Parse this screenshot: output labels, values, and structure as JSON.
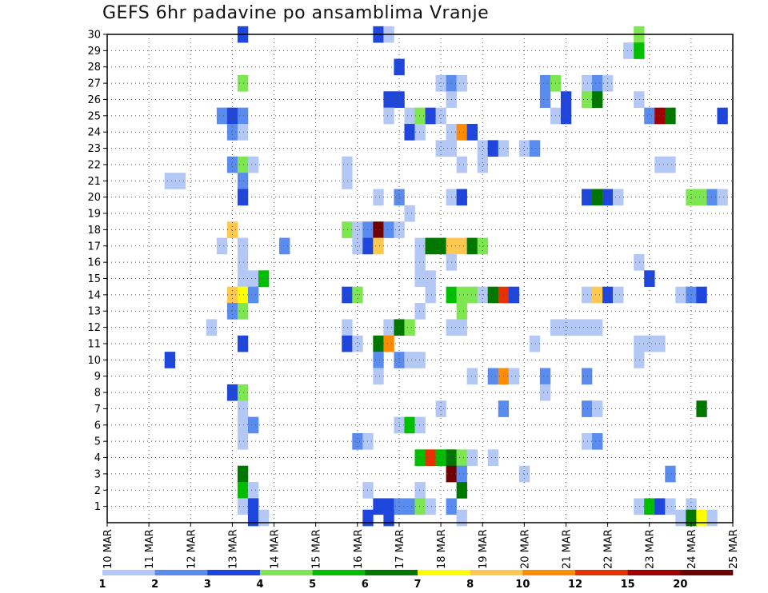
{
  "chart_data": {
    "type": "heatmap",
    "title": "GEFS 6hr padavine po ansamblima Vranje",
    "xlabel": "",
    "ylabel": "",
    "x_tick_labels": [
      "10 MAR",
      "11 MAR",
      "12 MAR",
      "13 MAR",
      "14 MAR",
      "15 MAR",
      "16 MAR",
      "17 MAR",
      "18 MAR",
      "19 MAR",
      "20 MAR",
      "21 MAR",
      "22 MAR",
      "23 MAR",
      "24 MAR",
      "25 MAR"
    ],
    "x_range_days": [
      10,
      25
    ],
    "y_tick_labels": [
      "1",
      "2",
      "3",
      "4",
      "5",
      "6",
      "7",
      "8",
      "9",
      "10",
      "11",
      "12",
      "13",
      "14",
      "15",
      "16",
      "17",
      "18",
      "19",
      "20",
      "21",
      "22",
      "23",
      "24",
      "25",
      "26",
      "27",
      "28",
      "29",
      "30"
    ],
    "y_range": [
      0,
      30
    ],
    "grid": true,
    "colorbar": {
      "labels": [
        "1",
        "2",
        "3",
        "4",
        "5",
        "6",
        "7",
        "8",
        "10",
        "12",
        "15",
        "20"
      ],
      "colors": [
        "#b4c8f5",
        "#5a8cf0",
        "#1e46dc",
        "#7de650",
        "#00be00",
        "#007800",
        "#ffff00",
        "#ffc850",
        "#ff8c00",
        "#e63200",
        "#a00000",
        "#6e0000"
      ]
    },
    "cell_days": 0.25,
    "cells": [
      {
        "m": 30,
        "t": 13.25,
        "c": 3
      },
      {
        "m": 30,
        "t": 16.5,
        "c": 3
      },
      {
        "m": 30,
        "t": 16.75,
        "c": 1
      },
      {
        "m": 30,
        "t": 22.75,
        "c": 4
      },
      {
        "m": 29,
        "t": 22.5,
        "c": 1
      },
      {
        "m": 29,
        "t": 22.75,
        "c": 5
      },
      {
        "m": 28,
        "t": 17,
        "c": 3
      },
      {
        "m": 27,
        "t": 13.25,
        "c": 4
      },
      {
        "m": 27,
        "t": 18,
        "c": 1
      },
      {
        "m": 27,
        "t": 18.25,
        "c": 2
      },
      {
        "m": 27,
        "t": 18.5,
        "c": 1
      },
      {
        "m": 27,
        "t": 20.5,
        "c": 2
      },
      {
        "m": 27,
        "t": 20.75,
        "c": 4
      },
      {
        "m": 27,
        "t": 21.5,
        "c": 1
      },
      {
        "m": 27,
        "t": 21.75,
        "c": 2
      },
      {
        "m": 27,
        "t": 22,
        "c": 1
      },
      {
        "m": 26,
        "t": 16.75,
        "c": 3
      },
      {
        "m": 26,
        "t": 17,
        "c": 3
      },
      {
        "m": 26,
        "t": 18.25,
        "c": 1
      },
      {
        "m": 26,
        "t": 20.5,
        "c": 2
      },
      {
        "m": 26,
        "t": 21,
        "c": 3
      },
      {
        "m": 26,
        "t": 21.5,
        "c": 4
      },
      {
        "m": 26,
        "t": 21.75,
        "c": 6
      },
      {
        "m": 26,
        "t": 22.75,
        "c": 1
      },
      {
        "m": 25,
        "t": 12.75,
        "c": 2
      },
      {
        "m": 25,
        "t": 13,
        "c": 3
      },
      {
        "m": 25,
        "t": 13.25,
        "c": 2
      },
      {
        "m": 25,
        "t": 16.75,
        "c": 1
      },
      {
        "m": 25,
        "t": 17.25,
        "c": 1
      },
      {
        "m": 25,
        "t": 17.5,
        "c": 4
      },
      {
        "m": 25,
        "t": 17.75,
        "c": 3
      },
      {
        "m": 25,
        "t": 18,
        "c": 1
      },
      {
        "m": 25,
        "t": 20.75,
        "c": 1
      },
      {
        "m": 25,
        "t": 21,
        "c": 3
      },
      {
        "m": 25,
        "t": 23,
        "c": 2
      },
      {
        "m": 25,
        "t": 23.25,
        "c": 11
      },
      {
        "m": 25,
        "t": 23.5,
        "c": 6
      },
      {
        "m": 25,
        "t": 24.75,
        "c": 3
      },
      {
        "m": 24,
        "t": 13,
        "c": 2
      },
      {
        "m": 24,
        "t": 13.25,
        "c": 1
      },
      {
        "m": 24,
        "t": 17.25,
        "c": 3
      },
      {
        "m": 24,
        "t": 17.5,
        "c": 1
      },
      {
        "m": 24,
        "t": 18.25,
        "c": 1
      },
      {
        "m": 24,
        "t": 18.5,
        "c": 9
      },
      {
        "m": 24,
        "t": 18.75,
        "c": 3
      },
      {
        "m": 23,
        "t": 18,
        "c": 1
      },
      {
        "m": 23,
        "t": 18.25,
        "c": 1
      },
      {
        "m": 23,
        "t": 19,
        "c": 1
      },
      {
        "m": 23,
        "t": 19.25,
        "c": 3
      },
      {
        "m": 23,
        "t": 19.5,
        "c": 1
      },
      {
        "m": 23,
        "t": 20,
        "c": 1
      },
      {
        "m": 23,
        "t": 20.25,
        "c": 2
      },
      {
        "m": 22,
        "t": 13,
        "c": 2
      },
      {
        "m": 22,
        "t": 13.25,
        "c": 4
      },
      {
        "m": 22,
        "t": 13.5,
        "c": 1
      },
      {
        "m": 22,
        "t": 15.75,
        "c": 1
      },
      {
        "m": 22,
        "t": 18.5,
        "c": 1
      },
      {
        "m": 22,
        "t": 19,
        "c": 1
      },
      {
        "m": 22,
        "t": 23.25,
        "c": 1
      },
      {
        "m": 22,
        "t": 23.5,
        "c": 1
      },
      {
        "m": 21,
        "t": 11.5,
        "c": 1
      },
      {
        "m": 21,
        "t": 11.75,
        "c": 1
      },
      {
        "m": 21,
        "t": 13.25,
        "c": 2
      },
      {
        "m": 21,
        "t": 15.75,
        "c": 1
      },
      {
        "m": 20,
        "t": 13.25,
        "c": 3
      },
      {
        "m": 20,
        "t": 16.5,
        "c": 1
      },
      {
        "m": 20,
        "t": 17,
        "c": 2
      },
      {
        "m": 20,
        "t": 18.25,
        "c": 1
      },
      {
        "m": 20,
        "t": 18.5,
        "c": 3
      },
      {
        "m": 20,
        "t": 21.5,
        "c": 3
      },
      {
        "m": 20,
        "t": 21.75,
        "c": 6
      },
      {
        "m": 20,
        "t": 22,
        "c": 3
      },
      {
        "m": 20,
        "t": 22.25,
        "c": 1
      },
      {
        "m": 20,
        "t": 24,
        "c": 4
      },
      {
        "m": 20,
        "t": 24.25,
        "c": 4
      },
      {
        "m": 20,
        "t": 24.5,
        "c": 2
      },
      {
        "m": 20,
        "t": 24.75,
        "c": 1
      },
      {
        "m": 19,
        "t": 17.25,
        "c": 1
      },
      {
        "m": 18,
        "t": 13,
        "c": 8
      },
      {
        "m": 18,
        "t": 15.75,
        "c": 4
      },
      {
        "m": 18,
        "t": 16,
        "c": 1
      },
      {
        "m": 18,
        "t": 16.25,
        "c": 2
      },
      {
        "m": 18,
        "t": 16.5,
        "c": 12
      },
      {
        "m": 18,
        "t": 16.75,
        "c": 2
      },
      {
        "m": 18,
        "t": 17,
        "c": 1
      },
      {
        "m": 17,
        "t": 12.75,
        "c": 1
      },
      {
        "m": 17,
        "t": 13.25,
        "c": 1
      },
      {
        "m": 17,
        "t": 14.25,
        "c": 2
      },
      {
        "m": 17,
        "t": 16,
        "c": 1
      },
      {
        "m": 17,
        "t": 16.25,
        "c": 3
      },
      {
        "m": 17,
        "t": 16.5,
        "c": 8
      },
      {
        "m": 17,
        "t": 17.5,
        "c": 1
      },
      {
        "m": 17,
        "t": 17.75,
        "c": 6
      },
      {
        "m": 17,
        "t": 18,
        "c": 6
      },
      {
        "m": 17,
        "t": 18.25,
        "c": 8
      },
      {
        "m": 17,
        "t": 18.5,
        "c": 8
      },
      {
        "m": 17,
        "t": 18.75,
        "c": 6
      },
      {
        "m": 17,
        "t": 19,
        "c": 4
      },
      {
        "m": 16,
        "t": 13.25,
        "c": 1
      },
      {
        "m": 16,
        "t": 17.5,
        "c": 1
      },
      {
        "m": 16,
        "t": 18.25,
        "c": 1
      },
      {
        "m": 16,
        "t": 22.75,
        "c": 1
      },
      {
        "m": 15,
        "t": 13.25,
        "c": 1
      },
      {
        "m": 15,
        "t": 13.5,
        "c": 1
      },
      {
        "m": 15,
        "t": 13.75,
        "c": 5
      },
      {
        "m": 15,
        "t": 17.5,
        "c": 1
      },
      {
        "m": 15,
        "t": 17.75,
        "c": 1
      },
      {
        "m": 15,
        "t": 23,
        "c": 3
      },
      {
        "m": 14,
        "t": 13,
        "c": 8
      },
      {
        "m": 14,
        "t": 13.25,
        "c": 7
      },
      {
        "m": 14,
        "t": 13.5,
        "c": 2
      },
      {
        "m": 14,
        "t": 15.75,
        "c": 3
      },
      {
        "m": 14,
        "t": 16,
        "c": 4
      },
      {
        "m": 14,
        "t": 17.75,
        "c": 1
      },
      {
        "m": 14,
        "t": 18.25,
        "c": 5
      },
      {
        "m": 14,
        "t": 18.5,
        "c": 4
      },
      {
        "m": 14,
        "t": 18.75,
        "c": 4
      },
      {
        "m": 14,
        "t": 19,
        "c": 1
      },
      {
        "m": 14,
        "t": 19.25,
        "c": 6
      },
      {
        "m": 14,
        "t": 19.5,
        "c": 10
      },
      {
        "m": 14,
        "t": 19.75,
        "c": 3
      },
      {
        "m": 14,
        "t": 21.5,
        "c": 1
      },
      {
        "m": 14,
        "t": 21.75,
        "c": 8
      },
      {
        "m": 14,
        "t": 22,
        "c": 3
      },
      {
        "m": 14,
        "t": 22.25,
        "c": 1
      },
      {
        "m": 14,
        "t": 23.75,
        "c": 1
      },
      {
        "m": 14,
        "t": 24,
        "c": 2
      },
      {
        "m": 14,
        "t": 24.25,
        "c": 3
      },
      {
        "m": 13,
        "t": 13,
        "c": 2
      },
      {
        "m": 13,
        "t": 13.25,
        "c": 4
      },
      {
        "m": 13,
        "t": 17.5,
        "c": 1
      },
      {
        "m": 13,
        "t": 18.5,
        "c": 4
      },
      {
        "m": 12,
        "t": 12.5,
        "c": 1
      },
      {
        "m": 12,
        "t": 15.75,
        "c": 1
      },
      {
        "m": 12,
        "t": 16.75,
        "c": 1
      },
      {
        "m": 12,
        "t": 17,
        "c": 6
      },
      {
        "m": 12,
        "t": 17.25,
        "c": 4
      },
      {
        "m": 12,
        "t": 18.25,
        "c": 1
      },
      {
        "m": 12,
        "t": 18.5,
        "c": 1
      },
      {
        "m": 12,
        "t": 20.75,
        "c": 1
      },
      {
        "m": 12,
        "t": 21,
        "c": 1
      },
      {
        "m": 12,
        "t": 21.25,
        "c": 1
      },
      {
        "m": 12,
        "t": 21.5,
        "c": 1
      },
      {
        "m": 12,
        "t": 21.75,
        "c": 1
      },
      {
        "m": 11,
        "t": 13.25,
        "c": 3
      },
      {
        "m": 11,
        "t": 15.75,
        "c": 3
      },
      {
        "m": 11,
        "t": 16,
        "c": 1
      },
      {
        "m": 11,
        "t": 16.5,
        "c": 6
      },
      {
        "m": 11,
        "t": 16.75,
        "c": 9
      },
      {
        "m": 11,
        "t": 20.25,
        "c": 1
      },
      {
        "m": 11,
        "t": 22.75,
        "c": 1
      },
      {
        "m": 11,
        "t": 23,
        "c": 1
      },
      {
        "m": 11,
        "t": 23.25,
        "c": 1
      },
      {
        "m": 10,
        "t": 11.5,
        "c": 3
      },
      {
        "m": 10,
        "t": 16.5,
        "c": 2
      },
      {
        "m": 10,
        "t": 17,
        "c": 2
      },
      {
        "m": 10,
        "t": 17.25,
        "c": 1
      },
      {
        "m": 10,
        "t": 17.5,
        "c": 1
      },
      {
        "m": 10,
        "t": 22.75,
        "c": 1
      },
      {
        "m": 9,
        "t": 16.5,
        "c": 1
      },
      {
        "m": 9,
        "t": 18.75,
        "c": 1
      },
      {
        "m": 9,
        "t": 19.25,
        "c": 2
      },
      {
        "m": 9,
        "t": 19.5,
        "c": 9
      },
      {
        "m": 9,
        "t": 19.75,
        "c": 1
      },
      {
        "m": 9,
        "t": 20.5,
        "c": 2
      },
      {
        "m": 9,
        "t": 21.5,
        "c": 2
      },
      {
        "m": 8,
        "t": 13,
        "c": 3
      },
      {
        "m": 8,
        "t": 13.25,
        "c": 4
      },
      {
        "m": 8,
        "t": 20.5,
        "c": 1
      },
      {
        "m": 7,
        "t": 13.25,
        "c": 1
      },
      {
        "m": 7,
        "t": 18,
        "c": 1
      },
      {
        "m": 7,
        "t": 19.5,
        "c": 2
      },
      {
        "m": 7,
        "t": 21.5,
        "c": 2
      },
      {
        "m": 7,
        "t": 21.75,
        "c": 1
      },
      {
        "m": 7,
        "t": 24.25,
        "c": 6
      },
      {
        "m": 6,
        "t": 13.25,
        "c": 1
      },
      {
        "m": 6,
        "t": 13.5,
        "c": 2
      },
      {
        "m": 6,
        "t": 17,
        "c": 1
      },
      {
        "m": 6,
        "t": 17.25,
        "c": 5
      },
      {
        "m": 6,
        "t": 17.5,
        "c": 1
      },
      {
        "m": 5,
        "t": 13.25,
        "c": 1
      },
      {
        "m": 5,
        "t": 16,
        "c": 2
      },
      {
        "m": 5,
        "t": 16.25,
        "c": 1
      },
      {
        "m": 5,
        "t": 21.5,
        "c": 1
      },
      {
        "m": 5,
        "t": 21.75,
        "c": 2
      },
      {
        "m": 4,
        "t": 17.5,
        "c": 5
      },
      {
        "m": 4,
        "t": 17.75,
        "c": 10
      },
      {
        "m": 4,
        "t": 18,
        "c": 5
      },
      {
        "m": 4,
        "t": 18.25,
        "c": 6
      },
      {
        "m": 4,
        "t": 18.5,
        "c": 4
      },
      {
        "m": 4,
        "t": 18.75,
        "c": 1
      },
      {
        "m": 4,
        "t": 19.25,
        "c": 1
      },
      {
        "m": 3,
        "t": 13.25,
        "c": 6
      },
      {
        "m": 3,
        "t": 18.25,
        "c": 12
      },
      {
        "m": 3,
        "t": 18.5,
        "c": 2
      },
      {
        "m": 3,
        "t": 20,
        "c": 1
      },
      {
        "m": 3,
        "t": 23.5,
        "c": 2
      },
      {
        "m": 2,
        "t": 13.25,
        "c": 5
      },
      {
        "m": 2,
        "t": 13.5,
        "c": 1
      },
      {
        "m": 2,
        "t": 16.25,
        "c": 1
      },
      {
        "m": 2,
        "t": 17.5,
        "c": 1
      },
      {
        "m": 2,
        "t": 18.5,
        "c": 6
      },
      {
        "m": 1,
        "t": 13.25,
        "c": 1
      },
      {
        "m": 1,
        "t": 13.5,
        "c": 3
      },
      {
        "m": 1,
        "t": 16.5,
        "c": 3
      },
      {
        "m": 1,
        "t": 16.75,
        "c": 3
      },
      {
        "m": 1,
        "t": 17,
        "c": 2
      },
      {
        "m": 1,
        "t": 17.25,
        "c": 2
      },
      {
        "m": 1,
        "t": 17.5,
        "c": 4
      },
      {
        "m": 1,
        "t": 17.75,
        "c": 1
      },
      {
        "m": 1,
        "t": 18.25,
        "c": 2
      },
      {
        "m": 1,
        "t": 22.75,
        "c": 1
      },
      {
        "m": 1,
        "t": 23,
        "c": 5
      },
      {
        "m": 1,
        "t": 23.25,
        "c": 3
      },
      {
        "m": 1,
        "t": 23.5,
        "c": 1
      },
      {
        "m": 1,
        "t": 24,
        "c": 1
      },
      {
        "m": 0,
        "t": 13.5,
        "c": 3
      },
      {
        "m": 0,
        "t": 13.75,
        "c": 1
      },
      {
        "m": 0,
        "t": 16.25,
        "c": 3
      },
      {
        "m": 0,
        "t": 16.75,
        "c": 3
      },
      {
        "m": 0,
        "t": 18.5,
        "c": 1
      },
      {
        "m": 0,
        "t": 23.75,
        "c": 1
      },
      {
        "m": 0,
        "t": 24,
        "c": 6
      },
      {
        "m": 0,
        "t": 24.25,
        "c": 7
      },
      {
        "m": 0,
        "t": 24.5,
        "c": 1
      }
    ]
  }
}
